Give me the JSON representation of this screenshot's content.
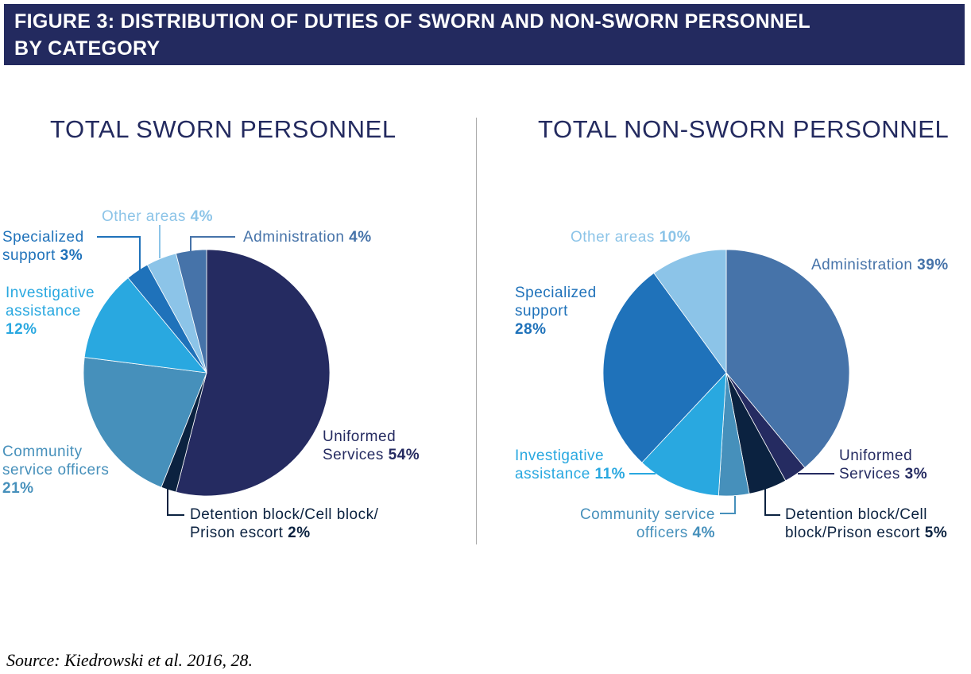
{
  "header": {
    "line1": "FIGURE 3: DISTRIBUTION OF DUTIES OF SWORN AND NON-SWORN PERSONNEL",
    "line2": "BY CATEGORY"
  },
  "source": "Source: Kiedrowski et al. 2016, 28.",
  "colors": {
    "banner": "#232a5f",
    "Uniformed Services": "#252b61",
    "Detention block/Cell block/Prison escort": "#0b2240",
    "Community service officers": "#4690bb",
    "Investigative assistance": "#29a8e0",
    "Specialized support": "#1f72ba",
    "Other areas": "#8cc4e8",
    "Administration": "#4673a9"
  },
  "chart_data": [
    {
      "type": "pie",
      "title": "TOTAL SWORN PERSONNEL",
      "slices": [
        {
          "name": "Uniformed Services",
          "value": 54,
          "label_lines": [
            "Uniformed",
            "Services"
          ],
          "pct": "54%"
        },
        {
          "name": "Detention block/Cell block/Prison escort",
          "value": 2,
          "label_lines": [
            "Detention block/Cell block/",
            "Prison escort"
          ],
          "pct": "2%"
        },
        {
          "name": "Community service officers",
          "value": 21,
          "label_lines": [
            "Community",
            "service officers"
          ],
          "pct": "21%"
        },
        {
          "name": "Investigative assistance",
          "value": 12,
          "label_lines": [
            "Investigative",
            "assistance"
          ],
          "pct": "12%"
        },
        {
          "name": "Specialized support",
          "value": 3,
          "label_lines": [
            "Specialized",
            "support"
          ],
          "pct": "3%"
        },
        {
          "name": "Other areas",
          "value": 4,
          "label_lines": [
            "Other areas"
          ],
          "pct": "4%"
        },
        {
          "name": "Administration",
          "value": 4,
          "label_lines": [
            "Administration"
          ],
          "pct": "4%"
        }
      ]
    },
    {
      "type": "pie",
      "title": "TOTAL NON-SWORN PERSONNEL",
      "slices": [
        {
          "name": "Administration",
          "value": 39,
          "label_lines": [
            "Administration"
          ],
          "pct": "39%"
        },
        {
          "name": "Uniformed Services",
          "value": 3,
          "label_lines": [
            "Uniformed",
            "Services"
          ],
          "pct": "3%"
        },
        {
          "name": "Detention block/Cell block/Prison escort",
          "value": 5,
          "label_lines": [
            "Detention block/Cell",
            "block/Prison escort"
          ],
          "pct": "5%"
        },
        {
          "name": "Community service officers",
          "value": 4,
          "label_lines": [
            "Community service",
            "officers"
          ],
          "pct": "4%"
        },
        {
          "name": "Investigative assistance",
          "value": 11,
          "label_lines": [
            "Investigative",
            "assistance"
          ],
          "pct": "11%"
        },
        {
          "name": "Specialized support",
          "value": 28,
          "label_lines": [
            "Specialized",
            "support"
          ],
          "pct": "28%"
        },
        {
          "name": "Other areas",
          "value": 10,
          "label_lines": [
            "Other areas"
          ],
          "pct": "10%"
        }
      ]
    }
  ]
}
